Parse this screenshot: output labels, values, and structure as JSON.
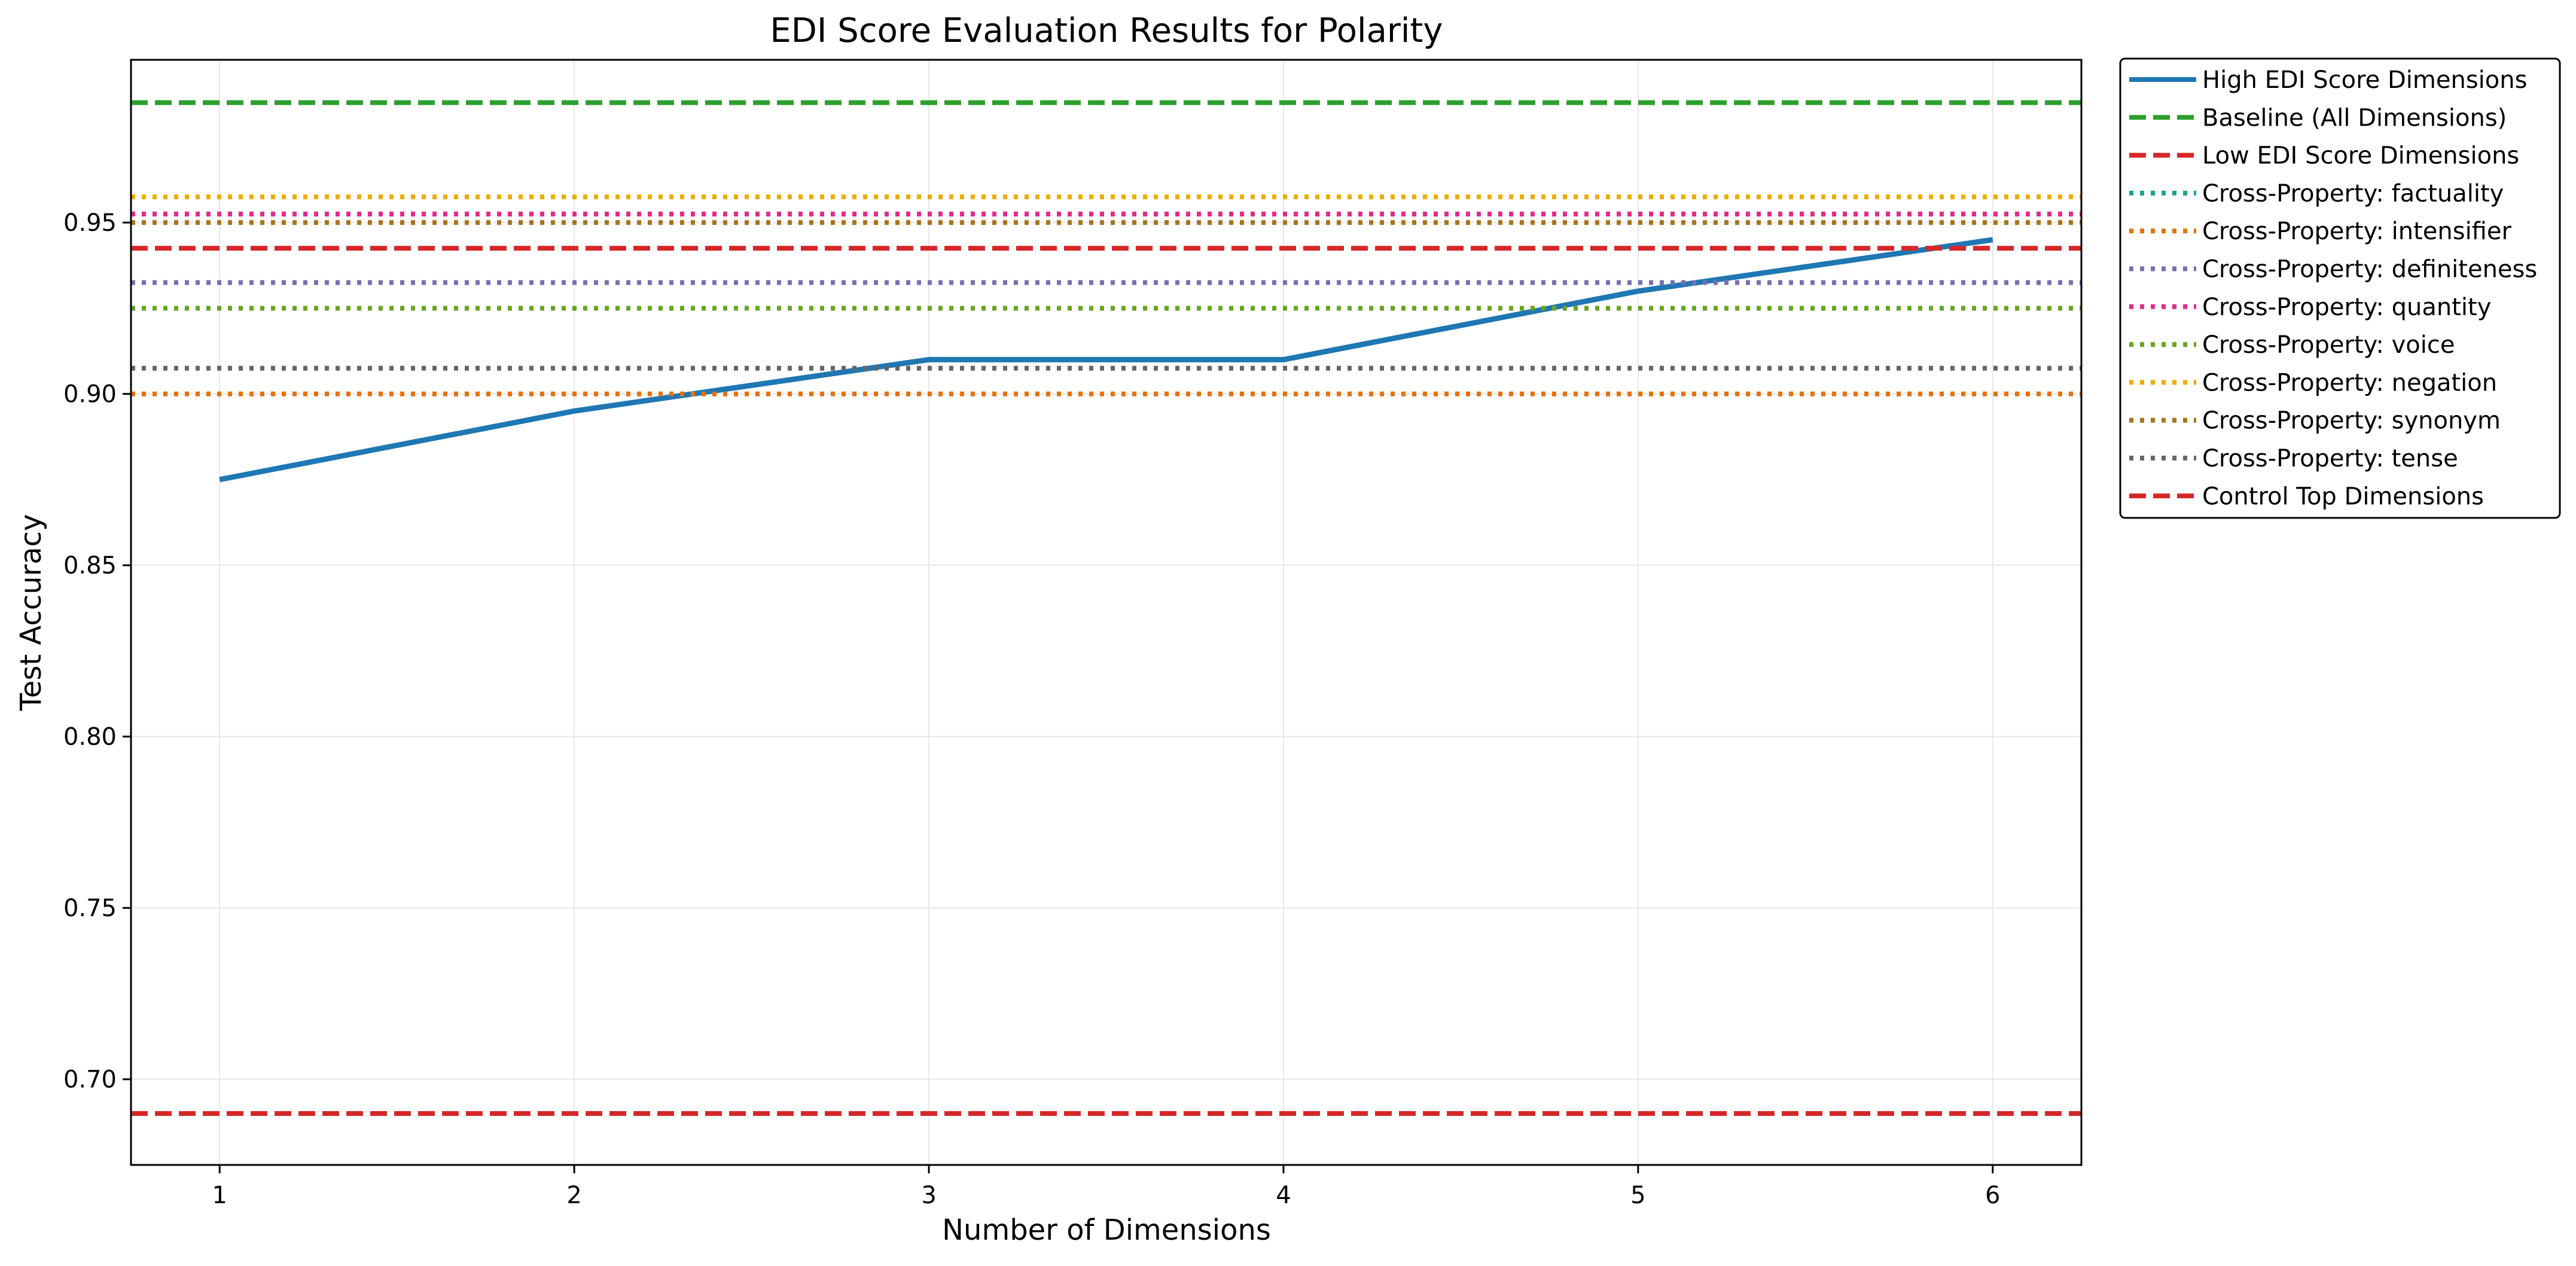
{
  "chart_data": {
    "type": "line",
    "title": "EDI Score Evaluation Results for Polarity",
    "xlabel": "Number of Dimensions",
    "ylabel": "Test Accuracy",
    "xlim": [
      0.75,
      6.25
    ],
    "ylim": [
      0.675,
      0.9975
    ],
    "x_ticks": [
      1,
      2,
      3,
      4,
      5,
      6
    ],
    "x_tick_labels": [
      "1",
      "2",
      "3",
      "4",
      "5",
      "6"
    ],
    "y_ticks": [
      0.7,
      0.75,
      0.8,
      0.85,
      0.9,
      0.95
    ],
    "y_tick_labels": [
      "0.70",
      "0.75",
      "0.80",
      "0.85",
      "0.90",
      "0.95"
    ],
    "grid": true,
    "legend_position": "outside-top-right",
    "series": [
      {
        "name": "High EDI Score Dimensions",
        "style": "solid",
        "color": "#1f77b4",
        "x": [
          1,
          2,
          3,
          4,
          5,
          6
        ],
        "values": [
          0.875,
          0.895,
          0.91,
          0.91,
          0.93,
          0.945
        ]
      },
      {
        "name": "Baseline (All Dimensions)",
        "style": "dashed",
        "color": "#2ca02c",
        "value": 0.985
      },
      {
        "name": "Low EDI Score Dimensions",
        "style": "dashed",
        "color": "#d62728",
        "value": 0.69
      },
      {
        "name": "Cross-Property: factuality",
        "style": "dotted",
        "color": "#17a589",
        "value": 0.9525
      },
      {
        "name": "Cross-Property: intensifier",
        "style": "dotted",
        "color": "#e8710a",
        "value": 0.9
      },
      {
        "name": "Cross-Property: definiteness",
        "style": "dotted",
        "color": "#7570b3",
        "value": 0.9325
      },
      {
        "name": "Cross-Property: quantity",
        "style": "dotted",
        "color": "#e7298a",
        "value": 0.9525
      },
      {
        "name": "Cross-Property: voice",
        "style": "dotted",
        "color": "#66a61e",
        "value": 0.925
      },
      {
        "name": "Cross-Property: negation",
        "style": "dotted",
        "color": "#f0ab00",
        "value": 0.9575
      },
      {
        "name": "Cross-Property: synonym",
        "style": "dotted",
        "color": "#a6761d",
        "value": 0.95
      },
      {
        "name": "Cross-Property: tense",
        "style": "dotted",
        "color": "#666666",
        "value": 0.9075
      },
      {
        "name": "Control Top Dimensions",
        "style": "dashed",
        "color": "#d62728",
        "value": 0.9425
      }
    ]
  }
}
